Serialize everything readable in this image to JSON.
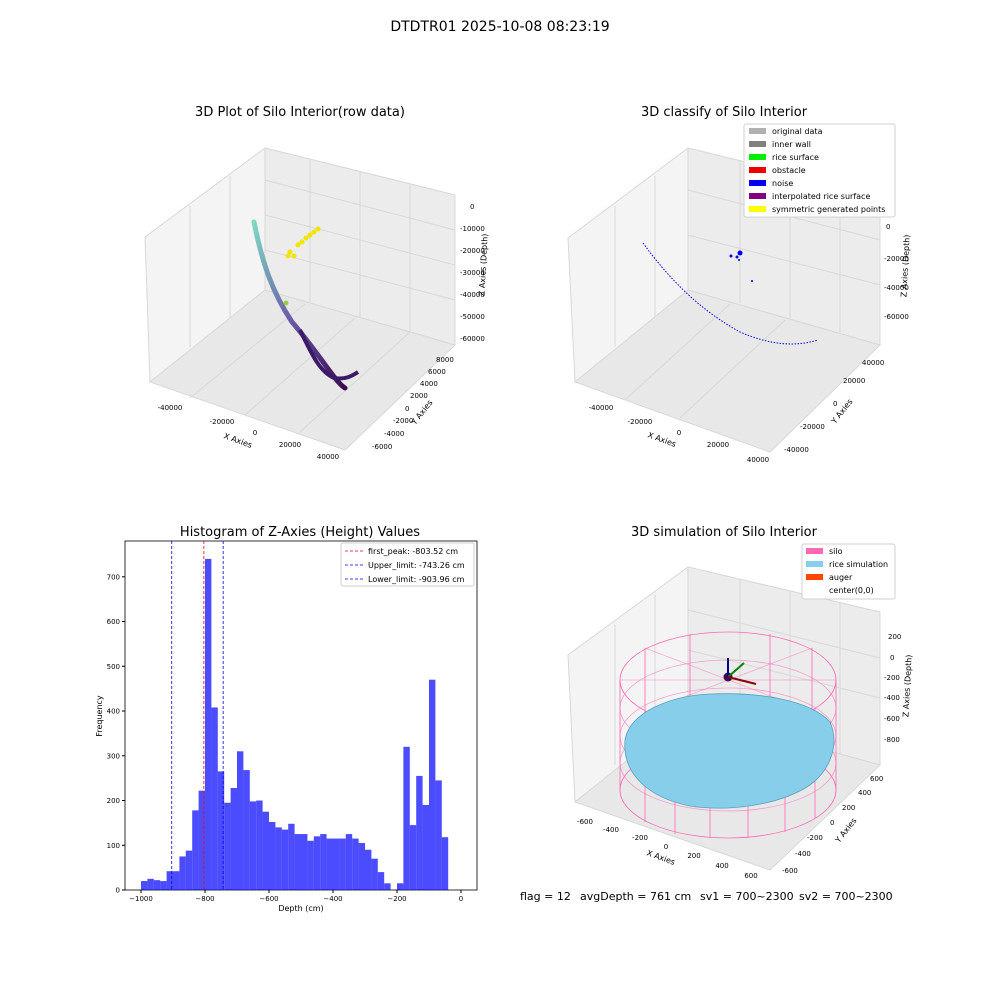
{
  "figure": {
    "suptitle": "DTDTR01 2025-10-08 08:23:19",
    "footer": {
      "flag": "flag = 12",
      "avg_depth": "avgDepth = 761 cm",
      "sv1": "sv1 = 700~2300",
      "sv2": "sv2 = 700~2300"
    }
  },
  "chart_data": [
    {
      "type": "scatter",
      "projection": "3d",
      "title": "3D Plot of Silo Interior(row data)",
      "xlabel": "X Axies",
      "ylabel": "Y Axies",
      "zlabel": "Z Axies (Depth)",
      "x_ticks": [
        "-40000",
        "-20000",
        "0",
        "20000",
        "40000"
      ],
      "y_ticks": [
        "-6000",
        "-4000",
        "-2000",
        "0",
        "2000",
        "4000",
        "6000",
        "8000"
      ],
      "z_ticks": [
        "0",
        "-10000",
        "-20000",
        "-30000",
        "-40000",
        "-50000",
        "-60000"
      ],
      "colormap": "viridis (colored by depth)",
      "series": [
        {
          "name": "",
          "points_xyz": [
            [
              -38000,
              2000,
              -10000
            ],
            [
              -35000,
              1500,
              -18000
            ],
            [
              -30000,
              1000,
              -26000
            ],
            [
              -24000,
              500,
              -33000
            ],
            [
              -17000,
              0,
              -40000
            ],
            [
              -10000,
              -500,
              -46000
            ],
            [
              -3000,
              -1200,
              -51000
            ],
            [
              4000,
              -2000,
              -55000
            ],
            [
              11000,
              -2800,
              -58000
            ],
            [
              18000,
              -3500,
              -60000
            ],
            [
              25000,
              -4200,
              -61000
            ],
            [
              30000,
              -4800,
              -61000
            ],
            [
              35000,
              -5200,
              -60000
            ]
          ]
        },
        {
          "name": "",
          "points_xyz": [
            [
              -8000,
              3500,
              -9000
            ],
            [
              -5000,
              3200,
              -11000
            ],
            [
              -2000,
              3000,
              -13000
            ],
            [
              -12000,
              2000,
              -16000
            ],
            [
              -14000,
              1500,
              -17000
            ],
            [
              -10000,
              4000,
              -30000
            ]
          ]
        }
      ]
    },
    {
      "type": "scatter",
      "projection": "3d",
      "title": "3D classify of Silo Interior",
      "xlabel": "X Axies",
      "ylabel": "Y Axies",
      "zlabel": "Z Axies (Depth)",
      "x_ticks": [
        "-40000",
        "-20000",
        "0",
        "20000",
        "40000"
      ],
      "y_ticks": [
        "-40000",
        "-20000",
        "0",
        "20000",
        "40000"
      ],
      "z_ticks": [
        "0",
        "-20000",
        "-40000",
        "-60000"
      ],
      "legend_position": "top-right",
      "legend": [
        {
          "label": "original data",
          "color": "#b0b0b0"
        },
        {
          "label": "inner wall",
          "color": "#808080"
        },
        {
          "label": "rice surface",
          "color": "#00ee00"
        },
        {
          "label": "obstacle",
          "color": "#ee0000"
        },
        {
          "label": "noise",
          "color": "#0000ee"
        },
        {
          "label": "interpolated rice surface",
          "color": "#800080"
        },
        {
          "label": "symmetric generated points",
          "color": "#ffff00"
        }
      ]
    },
    {
      "type": "bar",
      "title": "Histogram of Z-Axies (Height) Values",
      "xlabel": "Depth (cm)",
      "ylabel": "Frequency",
      "xlim": [
        -1050,
        50
      ],
      "ylim": [
        0,
        780
      ],
      "x_ticks": [
        -1000,
        -800,
        -600,
        -400,
        -200,
        0
      ],
      "y_ticks": [
        0,
        100,
        200,
        300,
        400,
        500,
        600,
        700
      ],
      "bar_color": "#0000ff",
      "bin_edges_start": -1000,
      "bin_width": 20,
      "values": [
        20,
        25,
        22,
        20,
        42,
        42,
        75,
        88,
        178,
        222,
        740,
        408,
        265,
        195,
        228,
        310,
        268,
        198,
        200,
        175,
        152,
        140,
        135,
        148,
        125,
        125,
        110,
        120,
        125,
        115,
        115,
        115,
        125,
        115,
        105,
        90,
        70,
        40,
        15,
        0,
        15,
        320,
        145,
        255,
        190,
        470,
        245,
        118
      ],
      "legend_position": "top-right",
      "vlines": [
        {
          "label": "first_peak: -803.52 cm",
          "x": -803.52,
          "color": "#ff0000"
        },
        {
          "label": "Upper_limit: -743.26 cm",
          "x": -743.26,
          "color": "#0000ff"
        },
        {
          "label": "Lower_limit: -903.96 cm",
          "x": -903.96,
          "color": "#0000ff"
        }
      ]
    },
    {
      "type": "surface",
      "projection": "3d",
      "title": "3D simulation of Silo Interior",
      "xlabel": "X Axies",
      "ylabel": "Y Axies",
      "zlabel": "Z Axies (Depth)",
      "x_ticks": [
        "-600",
        "-400",
        "-200",
        "0",
        "200",
        "400",
        "600"
      ],
      "y_ticks": [
        "-600",
        "-400",
        "-200",
        "0",
        "200",
        "400",
        "600"
      ],
      "z_ticks": [
        "200",
        "0",
        "-200",
        "-400",
        "-600",
        "-800"
      ],
      "legend_position": "top-right",
      "legend": [
        {
          "label": "silo",
          "color": "#ff69b4"
        },
        {
          "label": "rice simulation",
          "color": "#87ceeb"
        },
        {
          "label": "auger",
          "color": "#ff4500"
        },
        {
          "label": "center(0,0)",
          "color": "#ffffff"
        }
      ]
    }
  ]
}
